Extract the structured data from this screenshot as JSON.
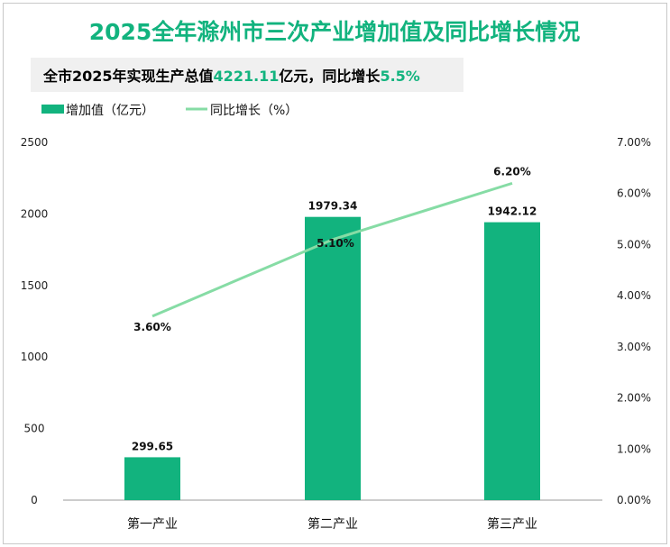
{
  "chart_data": {
    "type": "bar",
    "title": "2025全年滁州市三次产业增加值及同比增长情况",
    "subtitle": {
      "prefix": "全市2025年实现生产总值",
      "value": "4221.11",
      "mid": "亿元，同比增长",
      "growth": "5.5%"
    },
    "categories": [
      "第一产业",
      "第二产业",
      "第三产业"
    ],
    "series": [
      {
        "name": "增加值（亿元）",
        "type": "bar",
        "axis": "left",
        "values": [
          299.65,
          1979.34,
          1942.12
        ],
        "labels": [
          "299.65",
          "1979.34",
          "1942.12"
        ],
        "color": "#12b37e"
      },
      {
        "name": "同比增长（%）",
        "type": "line",
        "axis": "right",
        "values": [
          3.6,
          5.1,
          6.2
        ],
        "labels": [
          "3.60%",
          "5.10%",
          "6.20%"
        ],
        "color": "#86dca5"
      }
    ],
    "yleft": {
      "ylim": [
        0,
        2500
      ],
      "ticks": [
        "0",
        "500",
        "1000",
        "1500",
        "2000",
        "2500"
      ]
    },
    "yright": {
      "ylim": [
        0,
        7
      ],
      "ticks": [
        "0.00%",
        "1.00%",
        "2.00%",
        "3.00%",
        "4.00%",
        "5.00%",
        "6.00%",
        "7.00%"
      ]
    },
    "legend": "top-left",
    "grid": false
  }
}
